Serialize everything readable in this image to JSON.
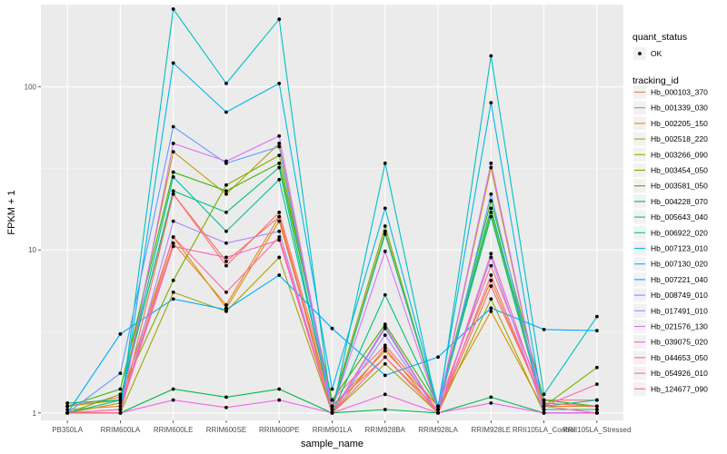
{
  "chart_data": {
    "type": "line",
    "xlabel": "sample_name",
    "ylabel": "FPKM + 1",
    "y_scale": "log10",
    "ylim": [
      0.9,
      320
    ],
    "yticks": [
      1,
      10,
      100
    ],
    "ytick_labels": [
      "1",
      "10",
      "100"
    ],
    "grid": true,
    "legend_position": "right",
    "categories": [
      "PB350LA",
      "RRIM600LA",
      "RRIM600LE",
      "RRIM600SE",
      "RRIM600PE",
      "RRIM901LA",
      "RRIM928BA",
      "RRIM928LA",
      "RRIM928LE",
      "RRII105LA_Control",
      "RRII105LA_Stressed"
    ],
    "quant_status": {
      "title": "quant_status",
      "items": [
        "OK"
      ]
    },
    "legend_title": "tracking_id",
    "series": [
      {
        "name": "Hb_000103_370",
        "color": "#F8766D",
        "values": [
          1.1,
          1.25,
          22.0,
          8.0,
          17.0,
          1.2,
          2.6,
          1.1,
          8.0,
          1.2,
          1.2
        ]
      },
      {
        "name": "Hb_001339_030",
        "color": "#EA8331",
        "values": [
          1.05,
          1.1,
          11.0,
          4.6,
          16.0,
          1.1,
          2.2,
          1.05,
          6.5,
          1.1,
          1.1
        ]
      },
      {
        "name": "Hb_002205_150",
        "color": "#D89000",
        "values": [
          1.1,
          1.2,
          12.0,
          4.4,
          15.0,
          1.1,
          2.4,
          1.1,
          4.2,
          1.05,
          1.05
        ]
      },
      {
        "name": "Hb_002518_220",
        "color": "#C09B00",
        "values": [
          1.0,
          1.15,
          40.0,
          22.0,
          45.0,
          1.05,
          13.0,
          1.05,
          32.0,
          1.0,
          1.0
        ]
      },
      {
        "name": "Hb_003266_090",
        "color": "#A3A500",
        "values": [
          1.0,
          1.0,
          5.5,
          4.2,
          9.0,
          1.0,
          2.0,
          1.0,
          5.0,
          1.0,
          1.0
        ]
      },
      {
        "name": "Hb_003454_050",
        "color": "#7CAE00",
        "values": [
          1.0,
          1.3,
          6.5,
          25.0,
          38.0,
          1.1,
          14.0,
          1.05,
          17.0,
          1.1,
          1.9
        ]
      },
      {
        "name": "Hb_003581_050",
        "color": "#39B600",
        "values": [
          1.1,
          1.4,
          30.0,
          23.0,
          34.0,
          1.2,
          3.5,
          1.1,
          20.0,
          1.2,
          1.1
        ]
      },
      {
        "name": "Hb_004228_070",
        "color": "#00BB4E",
        "values": [
          1.0,
          1.0,
          1.4,
          1.25,
          1.4,
          1.0,
          1.05,
          1.0,
          1.25,
          1.0,
          1.0
        ]
      },
      {
        "name": "Hb_005643_040",
        "color": "#00BF7D",
        "values": [
          1.15,
          1.2,
          23.0,
          17.0,
          32.0,
          1.0,
          5.3,
          1.1,
          16.0,
          1.05,
          1.05
        ]
      },
      {
        "name": "Hb_006922_020",
        "color": "#00C1A3",
        "values": [
          1.0,
          1.2,
          28.0,
          13.0,
          27.0,
          1.05,
          12.5,
          1.1,
          18.0,
          1.1,
          1.2
        ]
      },
      {
        "name": "Hb_007123_010",
        "color": "#00BFC4",
        "values": [
          1.0,
          1.0,
          300.0,
          105.0,
          260.0,
          1.0,
          34.0,
          1.0,
          155.0,
          1.3,
          3.9
        ]
      },
      {
        "name": "Hb_007130_020",
        "color": "#00B8E7",
        "values": [
          1.0,
          1.0,
          140.0,
          70.0,
          105.0,
          1.4,
          18.0,
          1.1,
          80.0,
          1.0,
          1.0
        ]
      },
      {
        "name": "Hb_007221_040",
        "color": "#00A9FF",
        "values": [
          1.0,
          3.05,
          5.0,
          4.3,
          7.0,
          3.3,
          1.7,
          2.2,
          4.4,
          3.25,
          3.2
        ]
      },
      {
        "name": "Hb_008749_010",
        "color": "#619CFF",
        "values": [
          1.0,
          1.75,
          57.0,
          34.0,
          43.0,
          1.0,
          3.3,
          1.0,
          22.0,
          1.0,
          1.0
        ]
      },
      {
        "name": "Hb_017491_010",
        "color": "#AE87FF",
        "values": [
          1.0,
          1.0,
          15.0,
          11.0,
          13.0,
          1.0,
          3.0,
          1.0,
          9.0,
          1.0,
          1.0
        ]
      },
      {
        "name": "Hb_021576_130",
        "color": "#DB72FB",
        "values": [
          1.0,
          1.0,
          45.0,
          35.0,
          50.0,
          1.05,
          9.8,
          1.05,
          34.0,
          1.0,
          1.0
        ]
      },
      {
        "name": "Hb_039075_020",
        "color": "#F564E3",
        "values": [
          1.0,
          1.0,
          1.2,
          1.08,
          1.2,
          1.0,
          1.3,
          1.0,
          1.15,
          1.0,
          1.0
        ]
      },
      {
        "name": "Hb_044653_050",
        "color": "#FF61C3",
        "values": [
          1.0,
          1.05,
          10.5,
          9.0,
          11.5,
          1.0,
          3.4,
          1.0,
          9.5,
          1.1,
          1.5
        ]
      },
      {
        "name": "Hb_054926_010",
        "color": "#FF699C",
        "values": [
          1.0,
          1.05,
          12.0,
          5.5,
          12.0,
          1.0,
          2.2,
          1.0,
          7.0,
          1.1,
          1.0
        ]
      },
      {
        "name": "Hb_124677_090",
        "color": "#FF6C67",
        "values": [
          1.0,
          1.0,
          22.0,
          8.5,
          16.0,
          1.0,
          2.5,
          1.0,
          6.0,
          1.15,
          1.1
        ]
      }
    ]
  }
}
